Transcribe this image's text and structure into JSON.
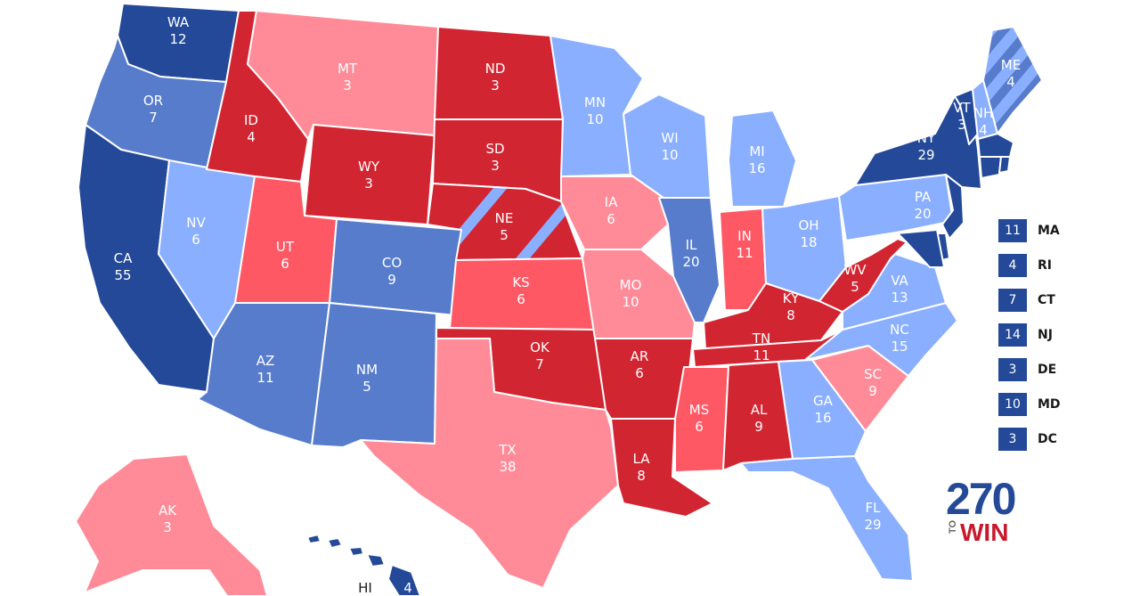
{
  "colors": {
    "safe_dem": "#244999",
    "likely_dem": "#577ccc",
    "lean_dem": "#8aafff",
    "safe_rep": "#d22532",
    "likely_rep": "#ff5865",
    "lean_rep": "#ff8b98",
    "border": "#ffffff"
  },
  "states": {
    "WA": {
      "abbr": "WA",
      "ev": "12",
      "rating": "safe_dem"
    },
    "OR": {
      "abbr": "OR",
      "ev": "7",
      "rating": "likely_dem"
    },
    "CA": {
      "abbr": "CA",
      "ev": "55",
      "rating": "safe_dem"
    },
    "NV": {
      "abbr": "NV",
      "ev": "6",
      "rating": "lean_dem"
    },
    "ID": {
      "abbr": "ID",
      "ev": "4",
      "rating": "safe_rep"
    },
    "MT": {
      "abbr": "MT",
      "ev": "3",
      "rating": "lean_rep"
    },
    "WY": {
      "abbr": "WY",
      "ev": "3",
      "rating": "safe_rep"
    },
    "UT": {
      "abbr": "UT",
      "ev": "6",
      "rating": "likely_rep"
    },
    "CO": {
      "abbr": "CO",
      "ev": "9",
      "rating": "likely_dem"
    },
    "AZ": {
      "abbr": "AZ",
      "ev": "11",
      "rating": "likely_dem"
    },
    "NM": {
      "abbr": "NM",
      "ev": "5",
      "rating": "likely_dem"
    },
    "ND": {
      "abbr": "ND",
      "ev": "3",
      "rating": "safe_rep"
    },
    "SD": {
      "abbr": "SD",
      "ev": "3",
      "rating": "safe_rep"
    },
    "NE": {
      "abbr": "NE",
      "ev": "5",
      "rating": "safe_rep"
    },
    "KS": {
      "abbr": "KS",
      "ev": "6",
      "rating": "likely_rep"
    },
    "OK": {
      "abbr": "OK",
      "ev": "7",
      "rating": "safe_rep"
    },
    "TX": {
      "abbr": "TX",
      "ev": "38",
      "rating": "lean_rep"
    },
    "MN": {
      "abbr": "MN",
      "ev": "10",
      "rating": "lean_dem"
    },
    "IA": {
      "abbr": "IA",
      "ev": "6",
      "rating": "lean_rep"
    },
    "MO": {
      "abbr": "MO",
      "ev": "10",
      "rating": "lean_rep"
    },
    "AR": {
      "abbr": "AR",
      "ev": "6",
      "rating": "safe_rep"
    },
    "LA": {
      "abbr": "LA",
      "ev": "8",
      "rating": "safe_rep"
    },
    "WI": {
      "abbr": "WI",
      "ev": "10",
      "rating": "lean_dem"
    },
    "IL": {
      "abbr": "IL",
      "ev": "20",
      "rating": "likely_dem"
    },
    "MI": {
      "abbr": "MI",
      "ev": "16",
      "rating": "lean_dem"
    },
    "IN": {
      "abbr": "IN",
      "ev": "11",
      "rating": "likely_rep"
    },
    "OH": {
      "abbr": "OH",
      "ev": "18",
      "rating": "lean_dem"
    },
    "KY": {
      "abbr": "KY",
      "ev": "8",
      "rating": "safe_rep"
    },
    "TN": {
      "abbr": "TN",
      "ev": "11",
      "rating": "safe_rep"
    },
    "MS": {
      "abbr": "MS",
      "ev": "6",
      "rating": "likely_rep"
    },
    "AL": {
      "abbr": "AL",
      "ev": "9",
      "rating": "safe_rep"
    },
    "GA": {
      "abbr": "GA",
      "ev": "16",
      "rating": "lean_dem"
    },
    "FL": {
      "abbr": "FL",
      "ev": "29",
      "rating": "lean_dem"
    },
    "SC": {
      "abbr": "SC",
      "ev": "9",
      "rating": "lean_rep"
    },
    "NC": {
      "abbr": "NC",
      "ev": "15",
      "rating": "lean_dem"
    },
    "VA": {
      "abbr": "VA",
      "ev": "13",
      "rating": "lean_dem"
    },
    "WV": {
      "abbr": "WV",
      "ev": "5",
      "rating": "safe_rep"
    },
    "PA": {
      "abbr": "PA",
      "ev": "20",
      "rating": "lean_dem"
    },
    "NY": {
      "abbr": "NY",
      "ev": "29",
      "rating": "safe_dem"
    },
    "VT": {
      "abbr": "VT",
      "ev": "3",
      "rating": "safe_dem"
    },
    "NH": {
      "abbr": "NH",
      "ev": "4",
      "rating": "lean_dem"
    },
    "ME": {
      "abbr": "ME",
      "ev": "4",
      "rating": "lean_dem"
    },
    "AK": {
      "abbr": "AK",
      "ev": "3",
      "rating": "lean_rep"
    },
    "HI": {
      "abbr": "HI",
      "ev": "4",
      "rating": "safe_dem"
    }
  },
  "legend": [
    {
      "ev": "11",
      "state": "MA"
    },
    {
      "ev": "4",
      "state": "RI"
    },
    {
      "ev": "7",
      "state": "CT"
    },
    {
      "ev": "14",
      "state": "NJ"
    },
    {
      "ev": "3",
      "state": "DE"
    },
    {
      "ev": "10",
      "state": "MD"
    },
    {
      "ev": "3",
      "state": "DC"
    }
  ],
  "logo": {
    "number": "270",
    "to": "TO",
    "win": "WIN"
  }
}
